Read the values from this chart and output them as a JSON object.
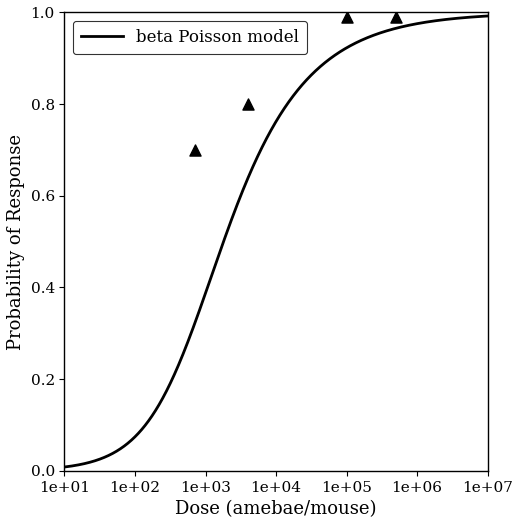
{
  "title": "",
  "xlabel": "Dose (amebae/mouse)",
  "ylabel": "Probability of Response",
  "xlim_log": [
    1,
    7
  ],
  "ylim": [
    0.0,
    1.0
  ],
  "yticks": [
    0.0,
    0.2,
    0.4,
    0.6,
    0.8,
    1.0
  ],
  "xtick_values": [
    10,
    100,
    1000,
    10000,
    100000,
    1000000,
    10000000
  ],
  "xtick_labels": [
    "1e+01",
    "1e+02",
    "1e+03",
    "1e+04",
    "1e+05",
    "1e+06",
    "1e+07"
  ],
  "data_points": [
    [
      700,
      0.7
    ],
    [
      4000,
      0.8
    ],
    [
      100000,
      0.99
    ],
    [
      500000,
      0.99
    ]
  ],
  "alpha_bp": 0.5,
  "beta_bp": 600,
  "line_color": "#000000",
  "line_width": 2.0,
  "marker_color": "#000000",
  "marker_size": 8,
  "legend_label": "beta Poisson model",
  "background_color": "#ffffff",
  "font_family": "serif"
}
